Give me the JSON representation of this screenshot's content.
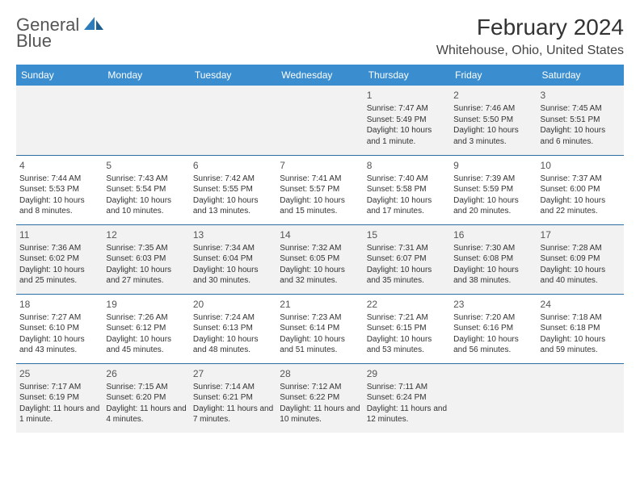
{
  "logo": {
    "line1": "General",
    "line2": "Blue"
  },
  "title": "February 2024",
  "location": "Whitehouse, Ohio, United States",
  "colors": {
    "header_bg": "#3a8dce",
    "row_border": "#2b6fa5",
    "alt_row_bg": "#f2f2f2",
    "text": "#333333",
    "logo_blue": "#2b7bbd"
  },
  "weekdays": [
    "Sunday",
    "Monday",
    "Tuesday",
    "Wednesday",
    "Thursday",
    "Friday",
    "Saturday"
  ],
  "weeks": [
    [
      null,
      null,
      null,
      null,
      {
        "n": "1",
        "sr": "Sunrise: 7:47 AM",
        "ss": "Sunset: 5:49 PM",
        "dl": "Daylight: 10 hours and 1 minute."
      },
      {
        "n": "2",
        "sr": "Sunrise: 7:46 AM",
        "ss": "Sunset: 5:50 PM",
        "dl": "Daylight: 10 hours and 3 minutes."
      },
      {
        "n": "3",
        "sr": "Sunrise: 7:45 AM",
        "ss": "Sunset: 5:51 PM",
        "dl": "Daylight: 10 hours and 6 minutes."
      }
    ],
    [
      {
        "n": "4",
        "sr": "Sunrise: 7:44 AM",
        "ss": "Sunset: 5:53 PM",
        "dl": "Daylight: 10 hours and 8 minutes."
      },
      {
        "n": "5",
        "sr": "Sunrise: 7:43 AM",
        "ss": "Sunset: 5:54 PM",
        "dl": "Daylight: 10 hours and 10 minutes."
      },
      {
        "n": "6",
        "sr": "Sunrise: 7:42 AM",
        "ss": "Sunset: 5:55 PM",
        "dl": "Daylight: 10 hours and 13 minutes."
      },
      {
        "n": "7",
        "sr": "Sunrise: 7:41 AM",
        "ss": "Sunset: 5:57 PM",
        "dl": "Daylight: 10 hours and 15 minutes."
      },
      {
        "n": "8",
        "sr": "Sunrise: 7:40 AM",
        "ss": "Sunset: 5:58 PM",
        "dl": "Daylight: 10 hours and 17 minutes."
      },
      {
        "n": "9",
        "sr": "Sunrise: 7:39 AM",
        "ss": "Sunset: 5:59 PM",
        "dl": "Daylight: 10 hours and 20 minutes."
      },
      {
        "n": "10",
        "sr": "Sunrise: 7:37 AM",
        "ss": "Sunset: 6:00 PM",
        "dl": "Daylight: 10 hours and 22 minutes."
      }
    ],
    [
      {
        "n": "11",
        "sr": "Sunrise: 7:36 AM",
        "ss": "Sunset: 6:02 PM",
        "dl": "Daylight: 10 hours and 25 minutes."
      },
      {
        "n": "12",
        "sr": "Sunrise: 7:35 AM",
        "ss": "Sunset: 6:03 PM",
        "dl": "Daylight: 10 hours and 27 minutes."
      },
      {
        "n": "13",
        "sr": "Sunrise: 7:34 AM",
        "ss": "Sunset: 6:04 PM",
        "dl": "Daylight: 10 hours and 30 minutes."
      },
      {
        "n": "14",
        "sr": "Sunrise: 7:32 AM",
        "ss": "Sunset: 6:05 PM",
        "dl": "Daylight: 10 hours and 32 minutes."
      },
      {
        "n": "15",
        "sr": "Sunrise: 7:31 AM",
        "ss": "Sunset: 6:07 PM",
        "dl": "Daylight: 10 hours and 35 minutes."
      },
      {
        "n": "16",
        "sr": "Sunrise: 7:30 AM",
        "ss": "Sunset: 6:08 PM",
        "dl": "Daylight: 10 hours and 38 minutes."
      },
      {
        "n": "17",
        "sr": "Sunrise: 7:28 AM",
        "ss": "Sunset: 6:09 PM",
        "dl": "Daylight: 10 hours and 40 minutes."
      }
    ],
    [
      {
        "n": "18",
        "sr": "Sunrise: 7:27 AM",
        "ss": "Sunset: 6:10 PM",
        "dl": "Daylight: 10 hours and 43 minutes."
      },
      {
        "n": "19",
        "sr": "Sunrise: 7:26 AM",
        "ss": "Sunset: 6:12 PM",
        "dl": "Daylight: 10 hours and 45 minutes."
      },
      {
        "n": "20",
        "sr": "Sunrise: 7:24 AM",
        "ss": "Sunset: 6:13 PM",
        "dl": "Daylight: 10 hours and 48 minutes."
      },
      {
        "n": "21",
        "sr": "Sunrise: 7:23 AM",
        "ss": "Sunset: 6:14 PM",
        "dl": "Daylight: 10 hours and 51 minutes."
      },
      {
        "n": "22",
        "sr": "Sunrise: 7:21 AM",
        "ss": "Sunset: 6:15 PM",
        "dl": "Daylight: 10 hours and 53 minutes."
      },
      {
        "n": "23",
        "sr": "Sunrise: 7:20 AM",
        "ss": "Sunset: 6:16 PM",
        "dl": "Daylight: 10 hours and 56 minutes."
      },
      {
        "n": "24",
        "sr": "Sunrise: 7:18 AM",
        "ss": "Sunset: 6:18 PM",
        "dl": "Daylight: 10 hours and 59 minutes."
      }
    ],
    [
      {
        "n": "25",
        "sr": "Sunrise: 7:17 AM",
        "ss": "Sunset: 6:19 PM",
        "dl": "Daylight: 11 hours and 1 minute."
      },
      {
        "n": "26",
        "sr": "Sunrise: 7:15 AM",
        "ss": "Sunset: 6:20 PM",
        "dl": "Daylight: 11 hours and 4 minutes."
      },
      {
        "n": "27",
        "sr": "Sunrise: 7:14 AM",
        "ss": "Sunset: 6:21 PM",
        "dl": "Daylight: 11 hours and 7 minutes."
      },
      {
        "n": "28",
        "sr": "Sunrise: 7:12 AM",
        "ss": "Sunset: 6:22 PM",
        "dl": "Daylight: 11 hours and 10 minutes."
      },
      {
        "n": "29",
        "sr": "Sunrise: 7:11 AM",
        "ss": "Sunset: 6:24 PM",
        "dl": "Daylight: 11 hours and 12 minutes."
      },
      null,
      null
    ]
  ]
}
